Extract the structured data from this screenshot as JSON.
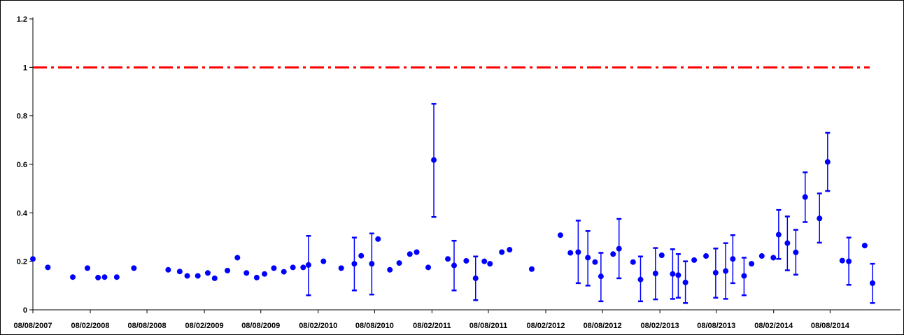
{
  "chart_data": {
    "type": "scatter",
    "title": "",
    "xlabel": "",
    "ylabel": "",
    "ylim": [
      0,
      1.2
    ],
    "grid": false,
    "y_ticks": [
      "0",
      "0.2",
      "0.4",
      "0.6",
      "0.8",
      "1",
      "1.2"
    ],
    "x_ticks": [
      "08/08/2007",
      "08/02/2008",
      "08/08/2008",
      "08/02/2009",
      "08/08/2009",
      "08/02/2010",
      "08/08/2010",
      "08/02/2011",
      "08/08/2011",
      "08/02/2012",
      "08/08/2012",
      "08/02/2013",
      "08/08/2013",
      "08/02/2014",
      "08/08/2014"
    ],
    "reference_line": {
      "y": 1.0,
      "color": "#ff0000",
      "style": "dash-dot"
    },
    "series": [
      {
        "color": "#0000ff",
        "points": [
          {
            "x": "2007-08-08",
            "y": 0.21
          },
          {
            "x": "2007-09-25",
            "y": 0.175
          },
          {
            "x": "2007-12-14",
            "y": 0.135
          },
          {
            "x": "2008-01-30",
            "y": 0.172
          },
          {
            "x": "2008-03-04",
            "y": 0.133
          },
          {
            "x": "2008-03-25",
            "y": 0.135
          },
          {
            "x": "2008-05-03",
            "y": 0.135
          },
          {
            "x": "2008-06-27",
            "y": 0.172
          },
          {
            "x": "2008-10-15",
            "y": 0.165
          },
          {
            "x": "2008-11-21",
            "y": 0.158
          },
          {
            "x": "2008-12-15",
            "y": 0.14
          },
          {
            "x": "2009-01-18",
            "y": 0.14
          },
          {
            "x": "2009-02-19",
            "y": 0.152
          },
          {
            "x": "2009-03-13",
            "y": 0.13
          },
          {
            "x": "2009-04-23",
            "y": 0.162
          },
          {
            "x": "2009-05-25",
            "y": 0.215
          },
          {
            "x": "2009-06-23",
            "y": 0.152
          },
          {
            "x": "2009-07-26",
            "y": 0.133
          },
          {
            "x": "2009-08-20",
            "y": 0.148
          },
          {
            "x": "2009-09-19",
            "y": 0.172
          },
          {
            "x": "2009-10-21",
            "y": 0.157
          },
          {
            "x": "2009-11-19",
            "y": 0.175
          },
          {
            "x": "2009-12-22",
            "y": 0.175
          },
          {
            "x": "2010-01-08",
            "y": 0.185,
            "err_low": 0.06,
            "err_high": 0.305
          },
          {
            "x": "2010-02-25",
            "y": 0.2
          },
          {
            "x": "2010-04-23",
            "y": 0.172
          },
          {
            "x": "2010-06-04",
            "y": 0.19,
            "err_low": 0.08,
            "err_high": 0.298
          },
          {
            "x": "2010-06-26",
            "y": 0.223
          },
          {
            "x": "2010-07-30",
            "y": 0.19,
            "err_low": 0.063,
            "err_high": 0.315
          },
          {
            "x": "2010-08-19",
            "y": 0.292
          },
          {
            "x": "2010-09-26",
            "y": 0.165
          },
          {
            "x": "2010-10-26",
            "y": 0.193
          },
          {
            "x": "2010-11-29",
            "y": 0.23
          },
          {
            "x": "2010-12-21",
            "y": 0.238
          },
          {
            "x": "2011-01-27",
            "y": 0.175
          },
          {
            "x": "2011-02-14",
            "y": 0.618,
            "err_low": 0.383,
            "err_high": 0.85
          },
          {
            "x": "2011-03-31",
            "y": 0.21
          },
          {
            "x": "2011-04-20",
            "y": 0.183,
            "err_low": 0.08,
            "err_high": 0.285
          },
          {
            "x": "2011-05-29",
            "y": 0.202
          },
          {
            "x": "2011-06-28",
            "y": 0.13,
            "err_low": 0.04,
            "err_high": 0.22
          },
          {
            "x": "2011-07-26",
            "y": 0.2
          },
          {
            "x": "2011-08-13",
            "y": 0.19
          },
          {
            "x": "2011-09-20",
            "y": 0.238
          },
          {
            "x": "2011-10-15",
            "y": 0.248
          },
          {
            "x": "2011-12-25",
            "y": 0.168
          },
          {
            "x": "2012-03-26",
            "y": 0.308
          },
          {
            "x": "2012-04-27",
            "y": 0.235
          },
          {
            "x": "2012-05-22",
            "y": 0.238,
            "err_low": 0.11,
            "err_high": 0.368
          },
          {
            "x": "2012-06-22",
            "y": 0.215,
            "err_low": 0.1,
            "err_high": 0.325
          },
          {
            "x": "2012-07-15",
            "y": 0.197
          },
          {
            "x": "2012-08-03",
            "y": 0.138,
            "err_low": 0.035,
            "err_high": 0.235
          },
          {
            "x": "2012-09-11",
            "y": 0.23
          },
          {
            "x": "2012-09-30",
            "y": 0.252,
            "err_low": 0.13,
            "err_high": 0.375
          },
          {
            "x": "2012-11-14",
            "y": 0.197
          },
          {
            "x": "2012-12-08",
            "y": 0.125,
            "err_low": 0.035,
            "err_high": 0.22
          },
          {
            "x": "2013-01-25",
            "y": 0.15,
            "err_low": 0.043,
            "err_high": 0.255
          },
          {
            "x": "2013-02-14",
            "y": 0.225
          },
          {
            "x": "2013-03-21",
            "y": 0.148,
            "err_low": 0.045,
            "err_high": 0.25
          },
          {
            "x": "2013-04-08",
            "y": 0.143,
            "err_low": 0.05,
            "err_high": 0.23
          },
          {
            "x": "2013-05-01",
            "y": 0.113,
            "err_low": 0.028,
            "err_high": 0.2
          },
          {
            "x": "2013-05-29",
            "y": 0.205
          },
          {
            "x": "2013-07-06",
            "y": 0.222
          },
          {
            "x": "2013-08-06",
            "y": 0.153,
            "err_low": 0.05,
            "err_high": 0.253
          },
          {
            "x": "2013-09-07",
            "y": 0.16,
            "err_low": 0.045,
            "err_high": 0.275
          },
          {
            "x": "2013-09-30",
            "y": 0.21,
            "err_low": 0.11,
            "err_high": 0.308
          },
          {
            "x": "2013-11-05",
            "y": 0.14,
            "err_low": 0.06,
            "err_high": 0.215
          },
          {
            "x": "2013-11-29",
            "y": 0.19
          },
          {
            "x": "2014-01-01",
            "y": 0.222
          },
          {
            "x": "2014-02-07",
            "y": 0.215
          },
          {
            "x": "2014-02-24",
            "y": 0.31,
            "err_low": 0.21,
            "err_high": 0.412
          },
          {
            "x": "2014-03-24",
            "y": 0.275,
            "err_low": 0.163,
            "err_high": 0.385
          },
          {
            "x": "2014-04-20",
            "y": 0.237,
            "err_low": 0.145,
            "err_high": 0.33
          },
          {
            "x": "2014-05-20",
            "y": 0.465,
            "err_low": 0.362,
            "err_high": 0.567
          },
          {
            "x": "2014-07-05",
            "y": 0.377,
            "err_low": 0.277,
            "err_high": 0.48
          },
          {
            "x": "2014-07-31",
            "y": 0.61,
            "err_low": 0.49,
            "err_high": 0.73
          },
          {
            "x": "2014-09-16",
            "y": 0.203
          },
          {
            "x": "2014-10-07",
            "y": 0.2,
            "err_low": 0.103,
            "err_high": 0.298
          },
          {
            "x": "2014-11-27",
            "y": 0.265
          },
          {
            "x": "2014-12-22",
            "y": 0.11,
            "err_low": 0.028,
            "err_high": 0.19
          }
        ]
      }
    ]
  }
}
